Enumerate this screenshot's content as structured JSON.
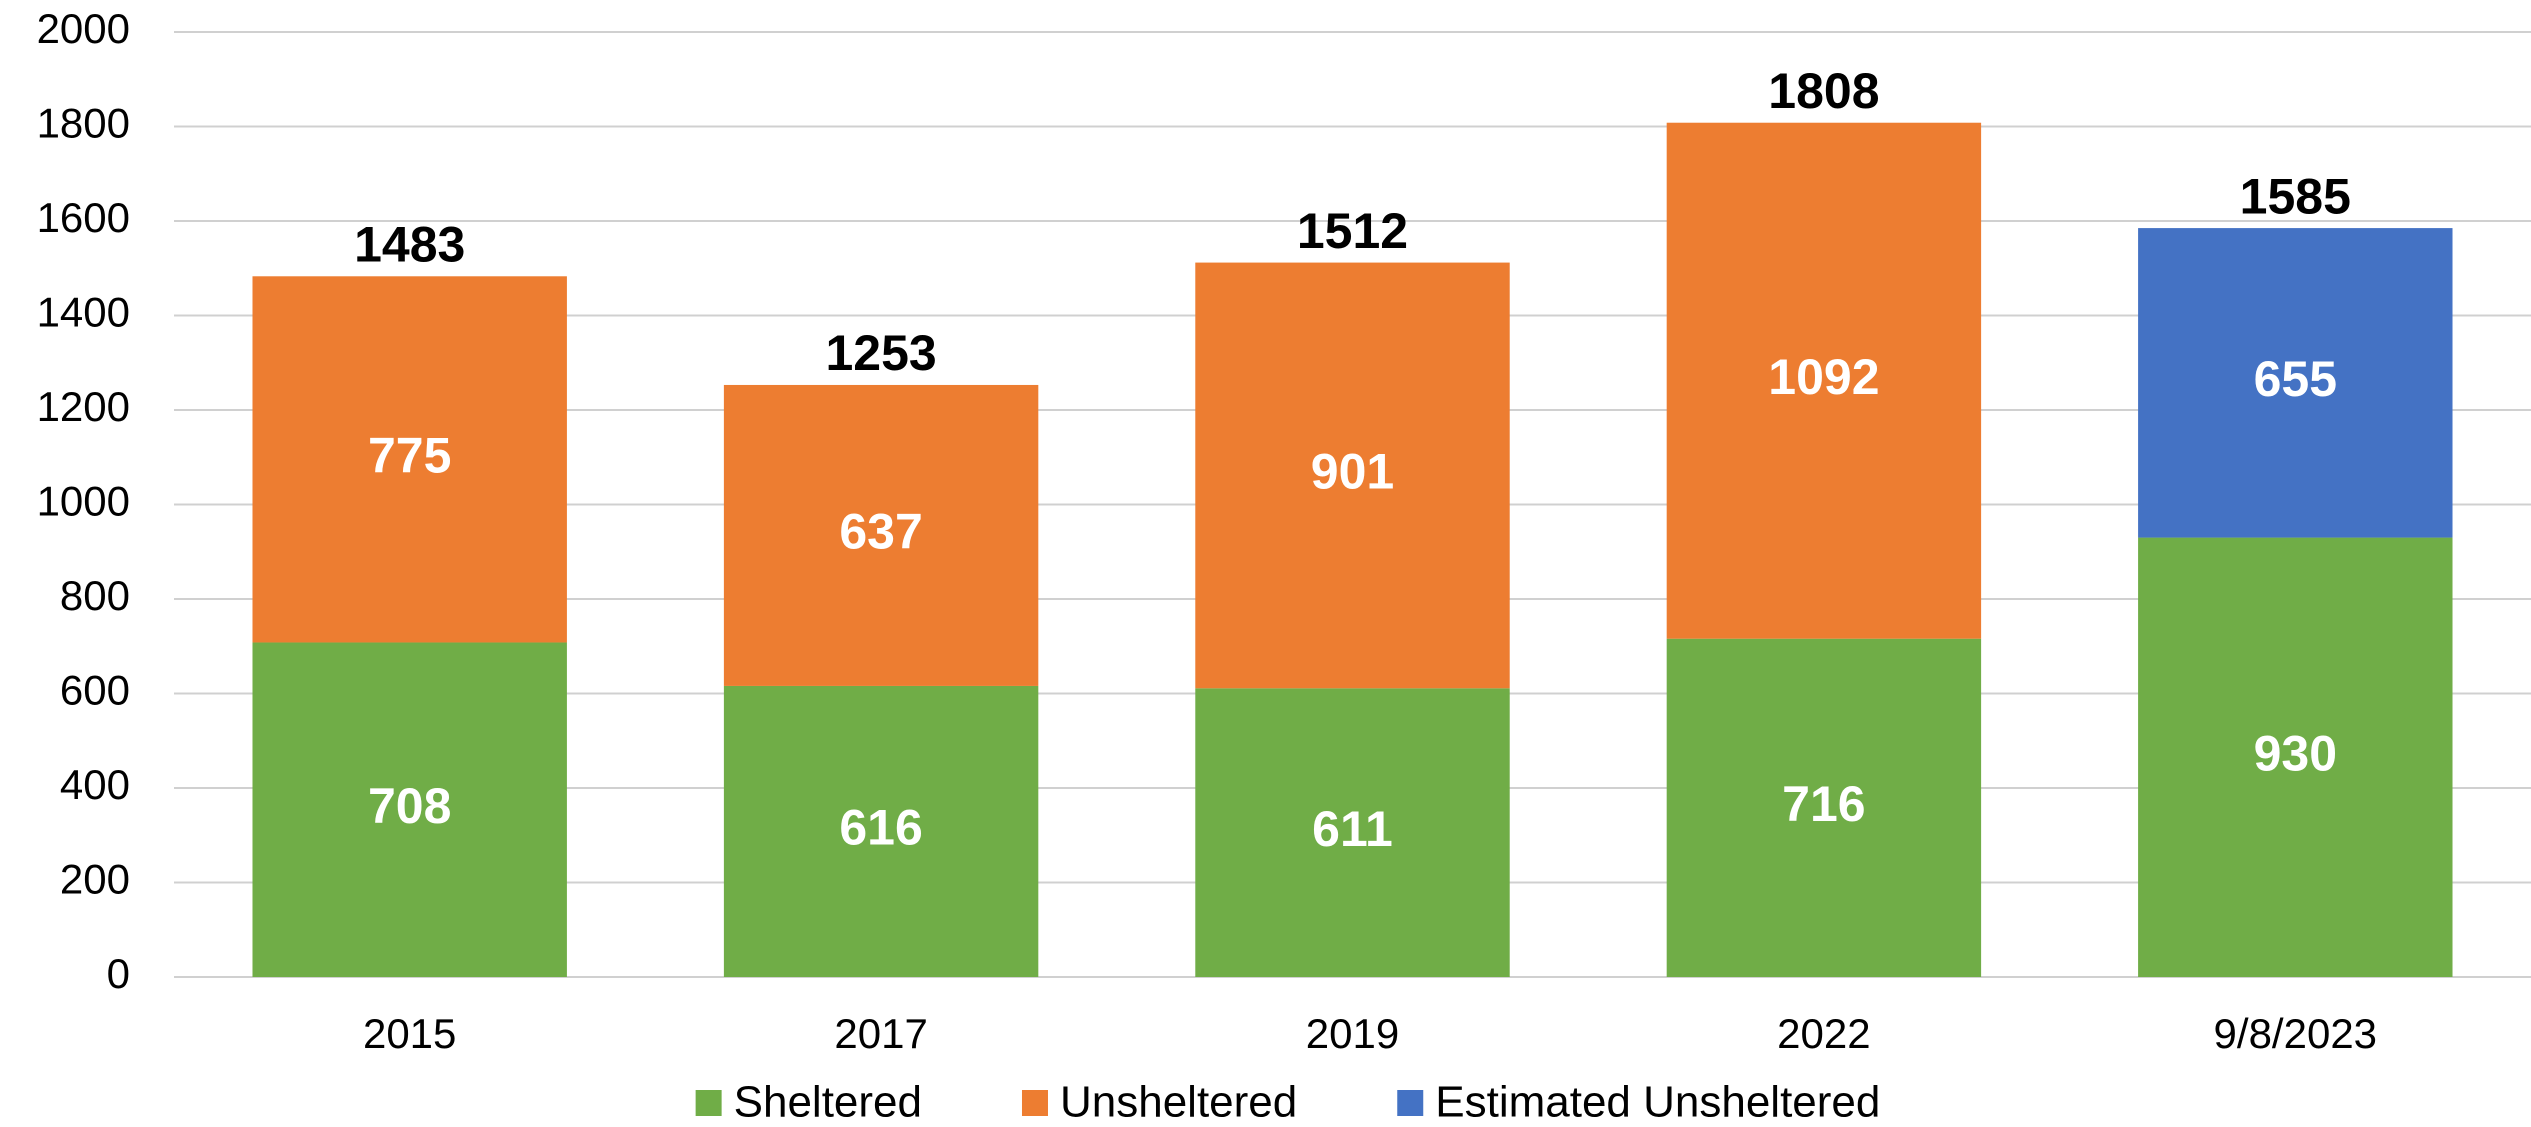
{
  "chart_data": {
    "type": "bar",
    "stacked": true,
    "categories": [
      "2015",
      "2017",
      "2019",
      "2022",
      "9/8/2023"
    ],
    "series": [
      {
        "name": "Sheltered",
        "color": "#70ad47",
        "values": [
          708,
          616,
          611,
          716,
          930
        ]
      },
      {
        "name": "Unsheltered",
        "color": "#ed7d31",
        "values": [
          775,
          637,
          901,
          1092,
          null
        ]
      },
      {
        "name": "Estimated Unsheltered",
        "color": "#4472c4",
        "values": [
          null,
          null,
          null,
          null,
          655
        ]
      }
    ],
    "totals": [
      1483,
      1253,
      1512,
      1808,
      1585
    ],
    "ylim": [
      0,
      2000
    ],
    "yticks": [
      0,
      200,
      400,
      600,
      800,
      1000,
      1200,
      1400,
      1600,
      1800,
      2000
    ],
    "grid": true,
    "legend": "bottom"
  }
}
